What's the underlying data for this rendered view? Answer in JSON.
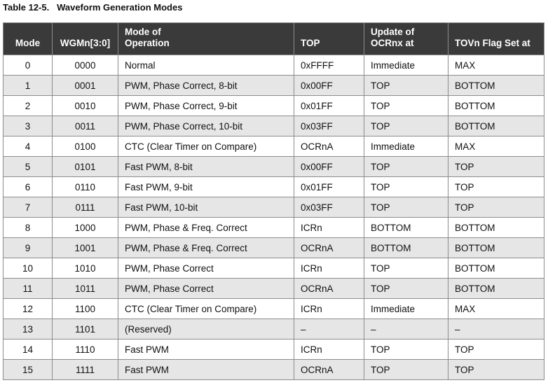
{
  "caption": "Table 12-5.   Waveform Generation Modes",
  "columns": [
    "Mode",
    "WGMn[3:0]",
    "Mode of\nOperation",
    "TOP",
    "Update of\nOCRnx at",
    "TOVn Flag Set at"
  ],
  "rows": [
    [
      "0",
      "0000",
      "Normal",
      "0xFFFF",
      "Immediate",
      "MAX"
    ],
    [
      "1",
      "0001",
      "PWM, Phase Correct, 8-bit",
      "0x00FF",
      "TOP",
      "BOTTOM"
    ],
    [
      "2",
      "0010",
      "PWM, Phase Correct, 9-bit",
      "0x01FF",
      "TOP",
      "BOTTOM"
    ],
    [
      "3",
      "0011",
      "PWM, Phase Correct, 10-bit",
      "0x03FF",
      "TOP",
      "BOTTOM"
    ],
    [
      "4",
      "0100",
      "CTC (Clear Timer on Compare)",
      "OCRnA",
      "Immediate",
      "MAX"
    ],
    [
      "5",
      "0101",
      "Fast PWM, 8-bit",
      "0x00FF",
      "TOP",
      "TOP"
    ],
    [
      "6",
      "0110",
      "Fast PWM, 9-bit",
      "0x01FF",
      "TOP",
      "TOP"
    ],
    [
      "7",
      "0111",
      "Fast PWM, 10-bit",
      "0x03FF",
      "TOP",
      "TOP"
    ],
    [
      "8",
      "1000",
      "PWM, Phase & Freq. Correct",
      "ICRn",
      "BOTTOM",
      "BOTTOM"
    ],
    [
      "9",
      "1001",
      "PWM, Phase & Freq. Correct",
      "OCRnA",
      "BOTTOM",
      "BOTTOM"
    ],
    [
      "10",
      "1010",
      "PWM, Phase Correct",
      "ICRn",
      "TOP",
      "BOTTOM"
    ],
    [
      "11",
      "1011",
      "PWM, Phase Correct",
      "OCRnA",
      "TOP",
      "BOTTOM"
    ],
    [
      "12",
      "1100",
      "CTC (Clear Timer on Compare)",
      "ICRn",
      "Immediate",
      "MAX"
    ],
    [
      "13",
      "1101",
      "(Reserved)",
      "–",
      "–",
      "–"
    ],
    [
      "14",
      "1110",
      "Fast PWM",
      "ICRn",
      "TOP",
      "TOP"
    ],
    [
      "15",
      "1111",
      "Fast PWM",
      "OCRnA",
      "TOP",
      "TOP"
    ]
  ]
}
